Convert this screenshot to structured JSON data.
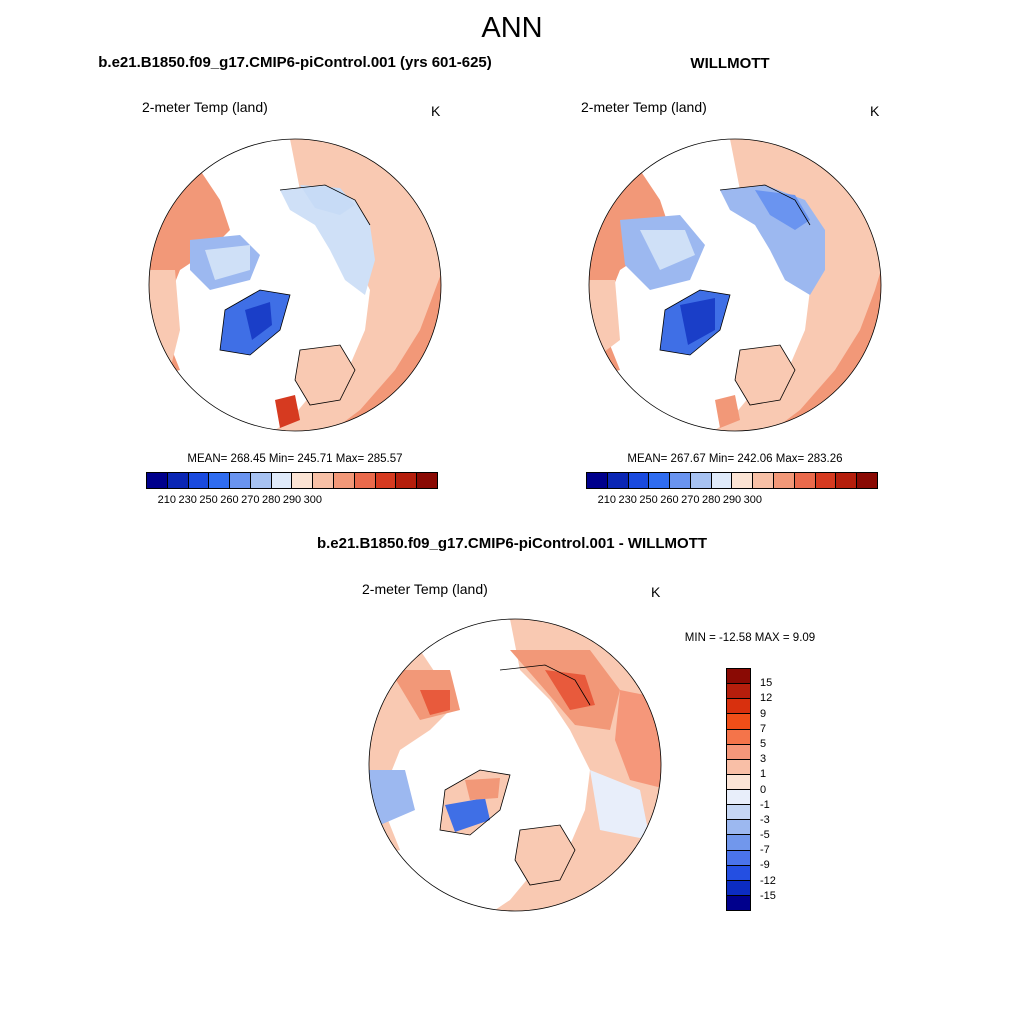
{
  "page": {
    "title": "ANN"
  },
  "panels": {
    "model": {
      "title": "b.e21.B1850.f09_g17.CMIP6-piControl.001 (yrs 601-625)",
      "variable": "2-meter Temp (land)",
      "units": "K",
      "stats": "MEAN= 268.45  Min= 245.71  Max= 285.57"
    },
    "obs": {
      "title": "WILLMOTT",
      "variable": "2-meter Temp (land)",
      "units": "K",
      "stats": "MEAN= 267.67  Min= 242.06  Max= 283.26"
    },
    "diff": {
      "title": "b.e21.B1850.f09_g17.CMIP6-piControl.001 - WILLMOTT",
      "variable": "2-meter Temp (land)",
      "units": "K",
      "stats": "MIN = -12.58 MAX =   9.09"
    }
  },
  "colorbar_abs": {
    "colors": [
      "#00008c",
      "#0a26b4",
      "#1a4ade",
      "#2f6cf0",
      "#6a94f0",
      "#a7c2f2",
      "#dfeafa",
      "#fbe3d3",
      "#f7c0a6",
      "#f29878",
      "#ea6a4c",
      "#d63a20",
      "#b51e0c",
      "#8a0a04"
    ],
    "ticks": [
      "210",
      "230",
      "250",
      "260",
      "270",
      "280",
      "290",
      "300"
    ]
  },
  "colorbar_diff": {
    "colors": [
      "#8a0a04",
      "#b51e0c",
      "#d8300e",
      "#f04e18",
      "#f4744a",
      "#f5977a",
      "#f9bfa7",
      "#fbe4d6",
      "#e8eefa",
      "#c5d6f4",
      "#9cb8f0",
      "#7197ec",
      "#4a73ea",
      "#244fe2",
      "#0c2cc2",
      "#00008c"
    ],
    "ticks": [
      "15",
      "12",
      "9",
      "7",
      "5",
      "3",
      "1",
      "0",
      "-1",
      "-3",
      "-5",
      "-7",
      "-9",
      "-12",
      "-15"
    ]
  },
  "map_colors": {
    "warm_light": "#f9c9b2",
    "warm_mid": "#f29878",
    "warm_strong": "#e85a3c",
    "warm_deep": "#d63a20",
    "cool_light": "#cfe0f7",
    "cool_mid": "#9cb8f0",
    "cool_strong": "#3f6fe6",
    "cool_deep": "#1a3ec8"
  }
}
